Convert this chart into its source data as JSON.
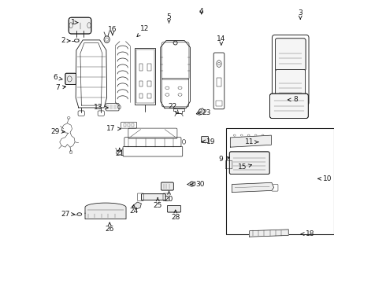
{
  "bg_color": "#ffffff",
  "line_color": "#1a1a1a",
  "lw": 0.6,
  "fs": 6.5,
  "parts_labels": {
    "1": [
      0.095,
      0.922,
      0.075,
      0.922
    ],
    "2": [
      0.075,
      0.857,
      0.04,
      0.857
    ],
    "3": [
      0.88,
      0.932,
      0.88,
      0.955
    ],
    "4": [
      0.53,
      0.942,
      0.53,
      0.962
    ],
    "5": [
      0.415,
      0.92,
      0.415,
      0.942
    ],
    "6": [
      0.04,
      0.72,
      0.012,
      0.726
    ],
    "7": [
      0.06,
      0.696,
      0.02,
      0.69
    ],
    "8": [
      0.825,
      0.648,
      0.863,
      0.648
    ],
    "9": [
      0.64,
      0.445,
      0.598,
      0.438
    ],
    "10": [
      0.94,
      0.368,
      0.975,
      0.368
    ],
    "11": [
      0.74,
      0.498,
      0.7,
      0.498
    ],
    "12": [
      0.3,
      0.87,
      0.33,
      0.9
    ],
    "13": [
      0.21,
      0.62,
      0.165,
      0.62
    ],
    "14": [
      0.6,
      0.84,
      0.6,
      0.865
    ],
    "15": [
      0.71,
      0.418,
      0.675,
      0.408
    ],
    "16": [
      0.215,
      0.876,
      0.215,
      0.898
    ],
    "17": [
      0.255,
      0.545,
      0.21,
      0.545
    ],
    "18": [
      0.88,
      0.172,
      0.916,
      0.172
    ],
    "19": [
      0.53,
      0.5,
      0.562,
      0.5
    ],
    "20": [
      0.415,
      0.326,
      0.415,
      0.295
    ],
    "21": [
      0.24,
      0.478,
      0.24,
      0.456
    ],
    "22": [
      0.45,
      0.598,
      0.428,
      0.625
    ],
    "23": [
      0.515,
      0.6,
      0.548,
      0.603
    ],
    "24": [
      0.29,
      0.278,
      0.29,
      0.252
    ],
    "25": [
      0.375,
      0.302,
      0.375,
      0.272
    ],
    "26": [
      0.205,
      0.215,
      0.205,
      0.19
    ],
    "27": [
      0.083,
      0.242,
      0.048,
      0.242
    ],
    "28": [
      0.438,
      0.26,
      0.438,
      0.232
    ],
    "29": [
      0.048,
      0.535,
      0.012,
      0.535
    ],
    "30": [
      0.49,
      0.348,
      0.524,
      0.348
    ]
  }
}
